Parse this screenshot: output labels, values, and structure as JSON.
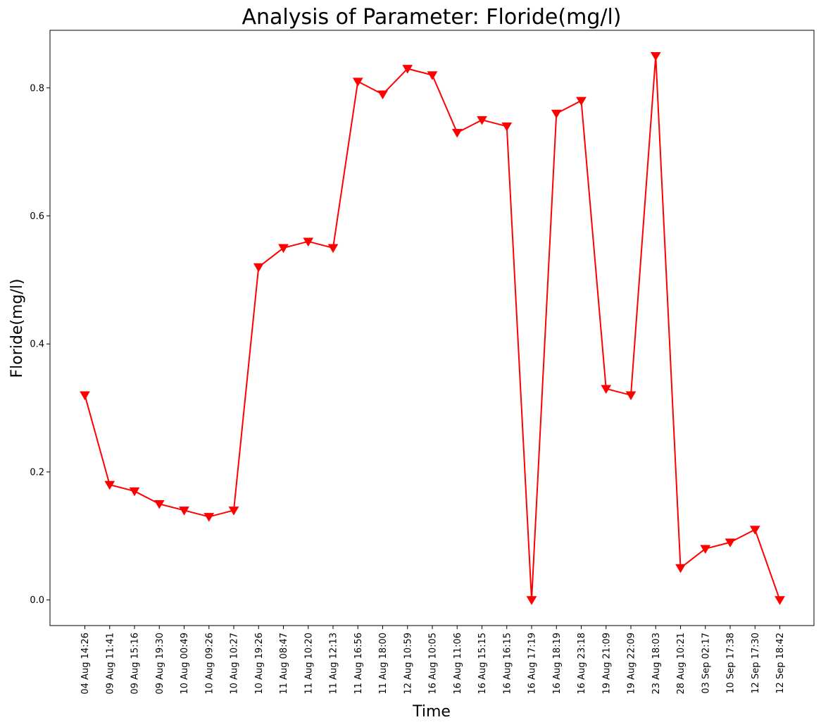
{
  "chart_data": {
    "type": "line",
    "title": "Analysis of Parameter: Floride(mg/l)",
    "xlabel": "Time",
    "ylabel": "Floride(mg/l)",
    "ylim": [
      -0.04,
      0.89
    ],
    "yticks": [
      "0.0",
      "0.2",
      "0.4",
      "0.6",
      "0.8"
    ],
    "grid": false,
    "legend": "none",
    "series": [
      {
        "color": "#ff0000",
        "marker": "triangle-down",
        "x": [
          "04 Aug 14:26",
          "09 Aug 11:41",
          "09 Aug 15:16",
          "09 Aug 19:30",
          "10 Aug 00:49",
          "10 Aug 09:26",
          "10 Aug 10:27",
          "10 Aug 19:26",
          "11 Aug 08:47",
          "11 Aug 10:20",
          "11 Aug 12:13",
          "11 Aug 16:56",
          "11 Aug 18:00",
          "12 Aug 10:59",
          "16 Aug 10:05",
          "16 Aug 11:06",
          "16 Aug 15:15",
          "16 Aug 16:15",
          "16 Aug 17:19",
          "16 Aug 18:19",
          "16 Aug 23:18",
          "19 Aug 21:09",
          "19 Aug 22:09",
          "23 Aug 18:03",
          "28 Aug 10:21",
          "03 Sep 02:17",
          "10 Sep 17:38",
          "12 Sep 17:30",
          "12 Sep 18:42"
        ],
        "values": [
          0.32,
          0.18,
          0.17,
          0.15,
          0.14,
          0.13,
          0.14,
          0.52,
          0.55,
          0.56,
          0.55,
          0.81,
          0.79,
          0.83,
          0.82,
          0.73,
          0.75,
          0.74,
          0.0,
          0.76,
          0.78,
          0.33,
          0.32,
          0.85,
          0.05,
          0.08,
          0.09,
          0.11,
          0.0
        ]
      }
    ]
  }
}
